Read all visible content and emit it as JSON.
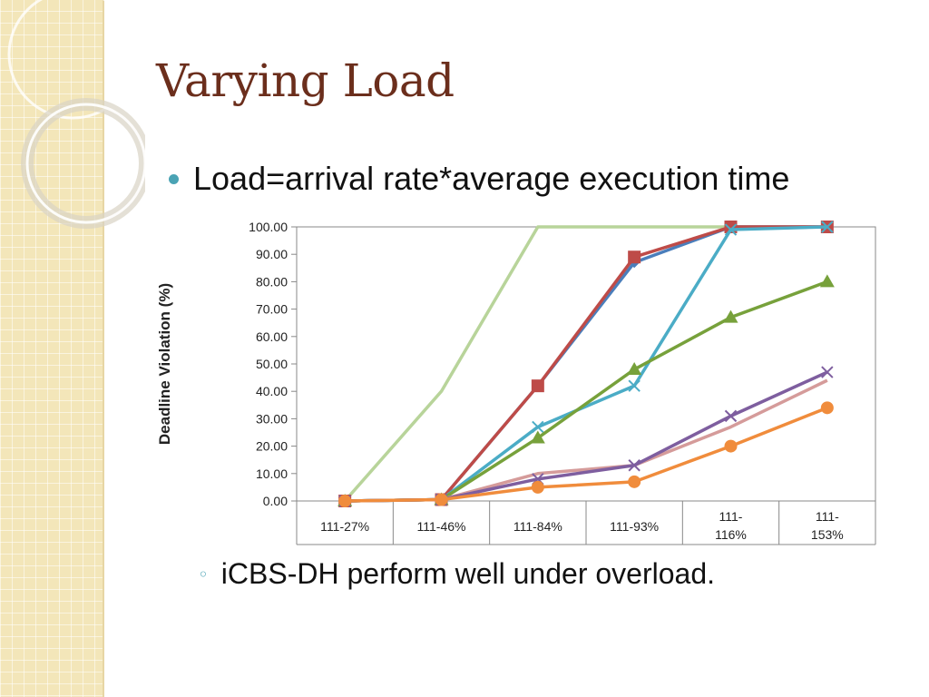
{
  "slide": {
    "title": "Varying Load",
    "bullet": "Load=arrival rate*average execution time",
    "sub_bullet": "iCBS-DH perform well under overload."
  },
  "colors": {
    "sidebar": "#f3e6b9",
    "title": "#6b2e1c",
    "bullet_marker": "#4aa3b4"
  },
  "chart_data": {
    "type": "line",
    "title": "",
    "ylabel": "Deadline Violation (%)",
    "xlabel": "",
    "ylim": [
      0,
      100
    ],
    "yticks": [
      "0.00",
      "10.00",
      "20.00",
      "30.00",
      "40.00",
      "50.00",
      "60.00",
      "70.00",
      "80.00",
      "90.00",
      "100.00"
    ],
    "categories": [
      [
        "111-27%"
      ],
      [
        "111-46%"
      ],
      [
        "111-84%"
      ],
      [
        "111-93%"
      ],
      [
        "111-",
        "116%"
      ],
      [
        "111-",
        "153%"
      ]
    ],
    "grid": false,
    "legend": "none",
    "series": [
      {
        "color": "#b8d49a",
        "marker": "none",
        "values": [
          0,
          40,
          100,
          100,
          100,
          100
        ]
      },
      {
        "color": "#4a7ebb",
        "marker": "diamond",
        "values": [
          0,
          0.5,
          42,
          87,
          100,
          100
        ]
      },
      {
        "color": "#be4b48",
        "marker": "square",
        "values": [
          0,
          0.5,
          42,
          89,
          100,
          100
        ]
      },
      {
        "color": "#4bacc6",
        "marker": "x",
        "values": [
          0,
          0.5,
          27,
          42,
          99,
          100
        ]
      },
      {
        "color": "#77a13b",
        "marker": "triangle",
        "values": [
          0,
          0.5,
          23,
          48,
          67,
          80
        ]
      },
      {
        "color": "#d59b9a",
        "marker": "none",
        "values": [
          0,
          0.5,
          10,
          13,
          27,
          44
        ]
      },
      {
        "color": "#7e5e9f",
        "marker": "x",
        "values": [
          0,
          0.5,
          8,
          13,
          31,
          47
        ]
      },
      {
        "color": "#f08c3c",
        "marker": "circle",
        "values": [
          0,
          0.5,
          5,
          7,
          20,
          34
        ]
      }
    ]
  }
}
